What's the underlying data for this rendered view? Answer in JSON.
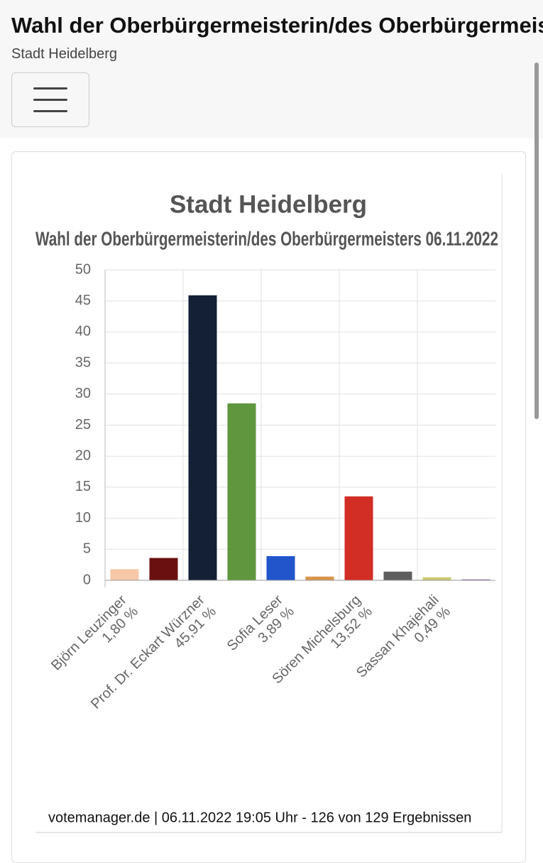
{
  "header": {
    "title": "Wahl der Oberbürgermeisterin/des Oberbürgermeisters",
    "subtitle": "Stadt Heidelberg"
  },
  "chart_data": {
    "type": "bar",
    "title": "Stadt Heidelberg",
    "subtitle": "Wahl der Oberbürgermeisterin/des Oberbürgermeisters 06.11.2022",
    "categories": [
      "Björn Leuzinger",
      null,
      "Prof. Dr. Eckart Würzner",
      null,
      "Sofia Leser",
      null,
      "Sören Michelsburg",
      null,
      "Sassan Khajehali",
      null
    ],
    "values": [
      1.8,
      3.6,
      45.91,
      28.5,
      3.89,
      0.6,
      13.52,
      1.4,
      0.49,
      0.15
    ],
    "value_labels": [
      "1,80 %",
      null,
      "45,91 %",
      null,
      "3,89 %",
      null,
      "13,52 %",
      null,
      "0,49 %",
      null
    ],
    "colors": [
      "#f6c8a8",
      "#6b1010",
      "#142035",
      "#5f963e",
      "#2255cc",
      "#d9954a",
      "#d22e25",
      "#5e5e5e",
      "#c9c96e",
      "#9c6bc4"
    ],
    "ylim": [
      0,
      50
    ],
    "yticks": [
      0,
      5,
      10,
      15,
      20,
      25,
      30,
      35,
      40,
      45,
      50
    ],
    "grid": true
  },
  "footer": "votemanager.de | 06.11.2022 19:05 Uhr - 126 von 129 Ergebnissen"
}
